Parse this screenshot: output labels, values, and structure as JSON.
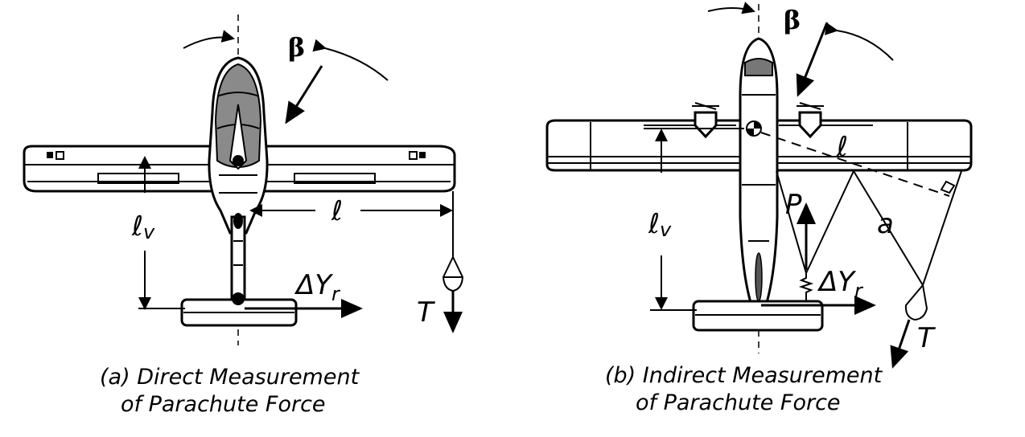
{
  "panel_a": {
    "caption_line1": "(a)  Direct Measurement",
    "caption_line2": "of Parachute Force",
    "label_beta": "β",
    "label_lv": "ℓ",
    "label_lv_sub": "v",
    "label_l": "ℓ",
    "label_dy": "ΔY",
    "label_dy_sub": "r",
    "label_t": "T"
  },
  "panel_b": {
    "caption_line1": "(b)  Indirect Measurement",
    "caption_line2": "of Parachute Force",
    "label_beta": "β",
    "label_lv": "ℓ",
    "label_lv_sub": "v",
    "label_l": "ℓ",
    "label_p": "P",
    "label_a": "a",
    "label_dy": "ΔY",
    "label_dy_sub": "r",
    "label_t": "T"
  }
}
